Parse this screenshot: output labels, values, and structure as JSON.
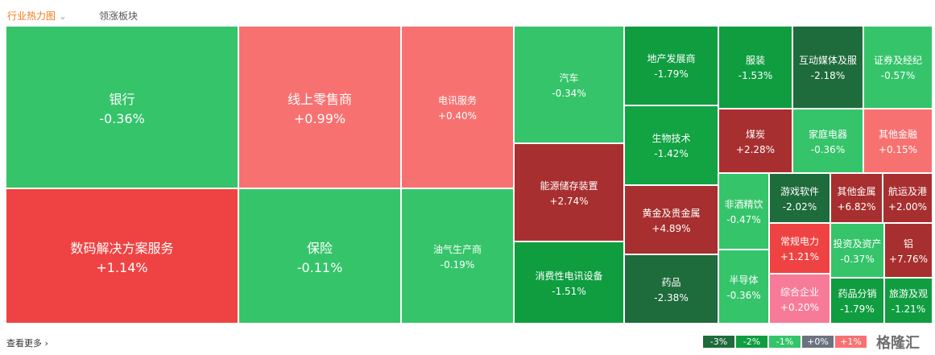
{
  "tabs": [
    "行业热力图",
    "领涨板块"
  ],
  "tiles": [
    {
      "name": "银行",
      "change": "-0.36%",
      "color": "#35c46a"
    },
    {
      "name": "数码解决方案服务",
      "change": "+1.14%",
      "color": "#ef4343"
    },
    {
      "name": "线上零售商",
      "change": "+0.99%",
      "color": "#f87171"
    },
    {
      "name": "保险",
      "change": "-0.11%",
      "color": "#35c46a"
    },
    {
      "name": "电讯服务",
      "change": "+0.40%",
      "color": "#f87171"
    },
    {
      "name": "油气生产商",
      "change": "-0.19%",
      "color": "#35c46a"
    },
    {
      "name": "汽车",
      "change": "-0.34%",
      "color": "#35c46a"
    },
    {
      "name": "能源储存装置",
      "change": "+2.74%",
      "color": "#a82f2f"
    },
    {
      "name": "消费性电讯设备",
      "change": "-1.51%",
      "color": "#0f9d40"
    },
    {
      "name": "地产发展商",
      "change": "-1.79%",
      "color": "#0f9d40"
    },
    {
      "name": "生物技术",
      "change": "-1.42%",
      "color": "#12a343"
    },
    {
      "name": "黄金及贵金属",
      "change": "+4.89%",
      "color": "#a82f2f"
    },
    {
      "name": "药品",
      "change": "-2.38%",
      "color": "#1e6b3b"
    },
    {
      "name": "服装",
      "change": "-1.53%",
      "color": "#0f9d40"
    },
    {
      "name": "互动媒体及服",
      "change": "-2.18%",
      "color": "#1e6b3b"
    },
    {
      "name": "证券及经纪",
      "change": "-0.57%",
      "color": "#35c46a"
    },
    {
      "name": "煤炭",
      "change": "+2.28%",
      "color": "#a82f2f"
    },
    {
      "name": "家庭电器",
      "change": "-0.36%",
      "color": "#35c46a"
    },
    {
      "name": "其他金融",
      "change": "+0.15%",
      "color": "#f87171"
    },
    {
      "name": "非酒精饮",
      "change": "-0.47%",
      "color": "#35c46a"
    },
    {
      "name": "半导体",
      "change": "-0.36%",
      "color": "#35c46a"
    },
    {
      "name": "游戏软件",
      "change": "-2.02%",
      "color": "#1e6b3b"
    },
    {
      "name": "常规电力",
      "change": "+1.21%",
      "color": "#ef4343"
    },
    {
      "name": "综合企业",
      "change": "+0.20%",
      "color": "#f77b98"
    },
    {
      "name": "其他金属",
      "change": "+6.82%",
      "color": "#a82f2f"
    },
    {
      "name": "航运及港",
      "change": "+2.00%",
      "color": "#a82f2f"
    },
    {
      "name": "投资及资产",
      "change": "-0.37%",
      "color": "#35c46a"
    },
    {
      "name": "铝",
      "change": "+7.76%",
      "color": "#a82f2f"
    },
    {
      "name": "药品分销",
      "change": "-1.79%",
      "color": "#0f9d40"
    },
    {
      "name": "旅游及观",
      "change": "-1.21%",
      "color": "#0f9d40"
    }
  ],
  "more": "查看更多",
  "legend": [
    {
      "label": "-3%",
      "color": "#1e6b3b"
    },
    {
      "label": "-2%",
      "color": "#0f9d40"
    },
    {
      "label": "-1%",
      "color": "#35c46a"
    },
    {
      "label": "+0%",
      "color": "#6b7280"
    },
    {
      "label": "+1%",
      "color": "#f87171"
    }
  ],
  "watermark": "格隆汇"
}
